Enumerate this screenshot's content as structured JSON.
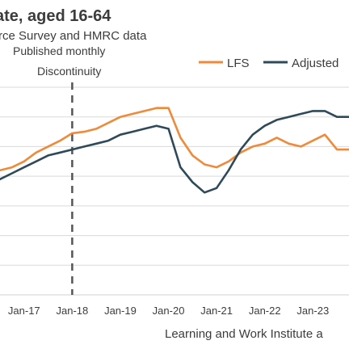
{
  "header": {
    "title": "ate, aged 16-64",
    "subtitle": "rce Survey and HMRC data",
    "frequency": "Published monthly"
  },
  "source": "Learning and Work Institute a",
  "annotation": "Discontinuity",
  "colors": {
    "lfs": "#EE8A3A",
    "adjusted": "#2E4A5A",
    "grid": "#d9d9d9",
    "discontinuity": "#555555",
    "text": "#3c3c3c"
  },
  "chart_data": {
    "type": "line",
    "title": "",
    "xlabel": "",
    "ylabel": "",
    "x_ticks": [
      "Jan-17",
      "Jan-18",
      "Jan-19",
      "Jan-20",
      "Jan-21",
      "Jan-22",
      "Jan-23",
      "J"
    ],
    "x_range": [
      "2016-07",
      "2023-10"
    ],
    "y_range": [
      0,
      7
    ],
    "grid": "horizontal",
    "legend_position": "top-right",
    "discontinuity_at": "2018-01",
    "series": [
      {
        "name": "LFS",
        "points": [
          [
            "2016-07",
            4.2
          ],
          [
            "2016-10",
            4.3
          ],
          [
            "2017-01",
            4.5
          ],
          [
            "2017-04",
            4.8
          ],
          [
            "2017-07",
            5.0
          ],
          [
            "2017-10",
            5.2
          ],
          [
            "2018-01",
            5.45
          ],
          [
            "2018-04",
            5.5
          ],
          [
            "2018-07",
            5.6
          ],
          [
            "2018-10",
            5.8
          ],
          [
            "2019-01",
            6.0
          ],
          [
            "2019-04",
            6.1
          ],
          [
            "2019-07",
            6.2
          ],
          [
            "2019-10",
            6.3
          ],
          [
            "2020-01",
            6.3
          ],
          [
            "2020-04",
            5.3
          ],
          [
            "2020-07",
            4.7
          ],
          [
            "2020-10",
            4.4
          ],
          [
            "2021-01",
            4.3
          ],
          [
            "2021-04",
            4.5
          ],
          [
            "2021-07",
            4.8
          ],
          [
            "2021-10",
            5.0
          ],
          [
            "2022-01",
            5.1
          ],
          [
            "2022-04",
            5.3
          ],
          [
            "2022-07",
            5.1
          ],
          [
            "2022-10",
            5.0
          ],
          [
            "2023-01",
            5.2
          ],
          [
            "2023-04",
            5.4
          ],
          [
            "2023-07",
            4.9
          ],
          [
            "2023-10",
            4.9
          ]
        ]
      },
      {
        "name": "Adjusted",
        "points": [
          [
            "2016-07",
            3.9
          ],
          [
            "2016-10",
            4.1
          ],
          [
            "2017-01",
            4.3
          ],
          [
            "2017-04",
            4.5
          ],
          [
            "2017-07",
            4.7
          ],
          [
            "2017-10",
            4.8
          ],
          [
            "2018-01",
            4.9
          ],
          [
            "2018-04",
            5.0
          ],
          [
            "2018-07",
            5.1
          ],
          [
            "2018-10",
            5.2
          ],
          [
            "2019-01",
            5.4
          ],
          [
            "2019-04",
            5.5
          ],
          [
            "2019-07",
            5.6
          ],
          [
            "2019-10",
            5.7
          ],
          [
            "2020-01",
            5.6
          ],
          [
            "2020-04",
            4.3
          ],
          [
            "2020-07",
            3.8
          ],
          [
            "2020-10",
            3.45
          ],
          [
            "2021-01",
            3.6
          ],
          [
            "2021-04",
            4.2
          ],
          [
            "2021-07",
            4.9
          ],
          [
            "2021-10",
            5.4
          ],
          [
            "2022-01",
            5.7
          ],
          [
            "2022-04",
            5.9
          ],
          [
            "2022-07",
            6.0
          ],
          [
            "2022-10",
            6.1
          ],
          [
            "2023-01",
            6.2
          ],
          [
            "2023-04",
            6.2
          ],
          [
            "2023-07",
            6.0
          ],
          [
            "2023-10",
            6.0
          ]
        ]
      }
    ]
  }
}
